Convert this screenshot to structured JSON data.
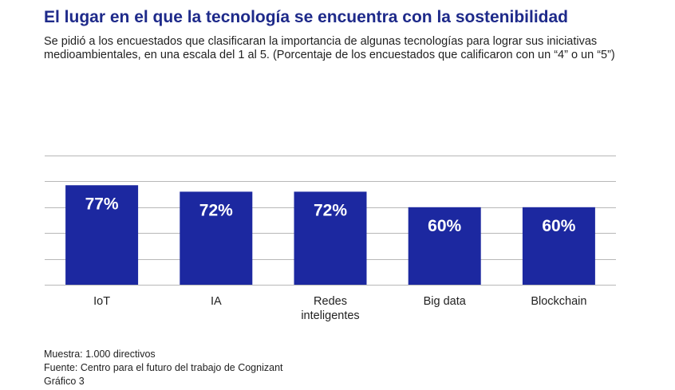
{
  "colors": {
    "bar": "#1c28a0",
    "grid": "#b8b8b8",
    "title": "#1e2a8a",
    "text": "#222222"
  },
  "chart_data": {
    "type": "bar",
    "title": "El lugar en el que la tecnología se encuentra con la sostenibilidad",
    "subtitle": "Se pidió a los encuestados que clasificaran la importancia de algunas tecnologías para lograr sus iniciativas medioambientales, en una escala del 1 al 5. (Porcentaje de los encuestados que calificaron con un “4” o un “5”)",
    "categories": [
      [
        "IoT"
      ],
      [
        "IA"
      ],
      [
        "Redes",
        "inteligentes"
      ],
      [
        "Big data"
      ],
      [
        "Blockchain"
      ]
    ],
    "values": [
      77,
      72,
      72,
      60,
      60
    ],
    "data_labels": [
      "77%",
      "72%",
      "72%",
      "60%",
      "60%"
    ],
    "ylim": [
      0,
      100
    ],
    "grid": true,
    "legend": "none"
  },
  "footer": {
    "sample": "Muestra: 1.000 directivos",
    "source": "Fuente: Centro para el futuro del trabajo de Cognizant",
    "figure": "Gráfico 3"
  }
}
